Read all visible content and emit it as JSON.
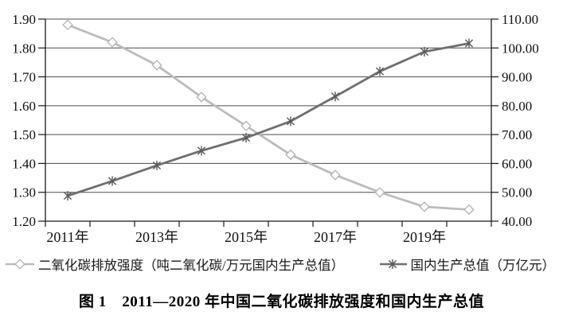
{
  "chart_data": {
    "type": "line",
    "title": "",
    "categories": [
      "2011",
      "2012",
      "2013",
      "2014",
      "2015",
      "2016",
      "2017",
      "2018",
      "2019",
      "2020"
    ],
    "x_tick_labels": [
      "2011年",
      "2013年",
      "2015年",
      "2017年",
      "2019年"
    ],
    "x_tick_label_positions": [
      0,
      2,
      4,
      6,
      8
    ],
    "series": [
      {
        "name": "二氧化碳排放强度（吨二氧化碳/万元国内生产总值）",
        "axis": "left",
        "marker": "diamond",
        "color": "#bcbcbc",
        "marker_color": "#aeaeae",
        "values": [
          1.88,
          1.82,
          1.74,
          1.63,
          1.53,
          1.43,
          1.36,
          1.3,
          1.25,
          1.24
        ]
      },
      {
        "name": "国内生产总值（万亿元）",
        "axis": "right",
        "marker": "asterisk",
        "color": "#6f6f6f",
        "marker_color": "#585858",
        "values": [
          48.8,
          53.9,
          59.3,
          64.4,
          68.9,
          74.6,
          83.2,
          91.9,
          98.7,
          101.6
        ]
      }
    ],
    "left_axis": {
      "min": 1.2,
      "max": 1.9,
      "step": 0.1,
      "tick_labels": [
        "1.90",
        "1.80",
        "1.70",
        "1.60",
        "1.50",
        "1.40",
        "1.30",
        "1.20"
      ]
    },
    "right_axis": {
      "min": 40,
      "max": 110,
      "step": 10,
      "tick_labels": [
        "110.00",
        "100.00",
        "90.00",
        "80.00",
        "70.00",
        "60.00",
        "50.00",
        "40.00"
      ]
    },
    "grid": true,
    "grid_color": "#4d4d4d",
    "axis_color": "#1a1a1a",
    "legend_position": "bottom"
  },
  "caption": "图 1　2011—2020 年中国二氧化碳排放强度和国内生产总值"
}
